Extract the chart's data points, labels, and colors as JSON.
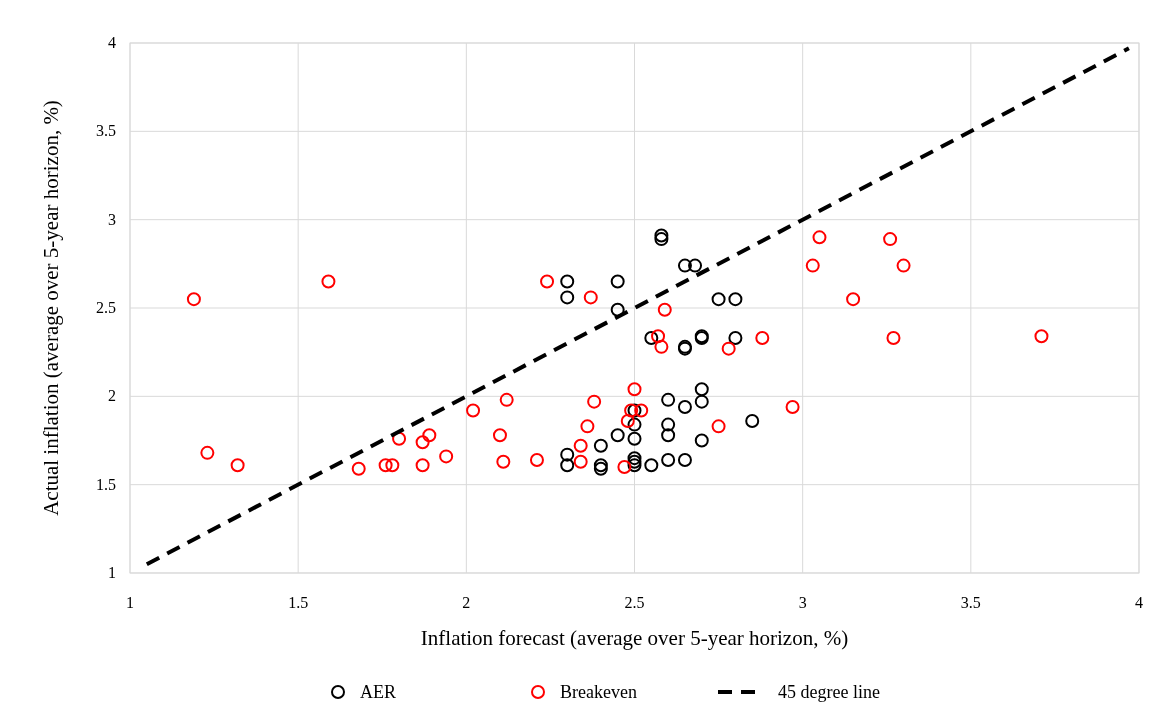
{
  "chart_data": {
    "type": "scatter",
    "xlabel": "Inflation forecast (average over 5-year horizon, %)",
    "ylabel": "Actual inflation (average over 5-year horizon, %)",
    "xlim": [
      1,
      4
    ],
    "ylim": [
      1,
      4
    ],
    "xticks": [
      1,
      1.5,
      2,
      2.5,
      3,
      3.5,
      4
    ],
    "yticks": [
      1,
      1.5,
      2,
      2.5,
      3,
      3.5,
      4
    ],
    "grid": true,
    "legend": "bottom",
    "marker": "circle",
    "series": [
      {
        "name": "AER",
        "color": "#000000",
        "x": [
          2.3,
          2.3,
          2.45,
          2.45,
          2.58,
          2.58,
          2.65,
          2.68,
          2.75,
          2.8,
          2.55,
          2.7,
          2.7,
          2.65,
          2.65,
          2.8,
          2.7,
          2.7,
          2.6,
          2.65,
          2.6,
          2.6,
          2.85,
          2.5,
          2.5,
          2.5,
          2.45,
          2.4,
          2.3,
          2.3,
          2.4,
          2.4,
          2.5,
          2.5,
          2.5,
          2.55,
          2.6,
          2.65,
          2.7
        ],
        "values": [
          2.65,
          2.56,
          2.65,
          2.49,
          2.89,
          2.91,
          2.74,
          2.74,
          2.55,
          2.55,
          2.33,
          2.33,
          2.34,
          2.28,
          2.27,
          2.33,
          2.04,
          1.97,
          1.98,
          1.94,
          1.84,
          1.78,
          1.86,
          1.92,
          1.84,
          1.76,
          1.78,
          1.72,
          1.67,
          1.61,
          1.61,
          1.59,
          1.65,
          1.63,
          1.61,
          1.61,
          1.64,
          1.64,
          1.75
        ]
      },
      {
        "name": "Breakeven",
        "color": "#ff0000",
        "x": [
          1.19,
          1.59,
          1.23,
          1.32,
          1.68,
          1.76,
          1.78,
          1.8,
          1.87,
          1.87,
          1.89,
          1.94,
          2.02,
          2.1,
          2.11,
          2.12,
          2.21,
          2.24,
          2.37,
          2.34,
          2.34,
          2.36,
          2.38,
          2.47,
          2.48,
          2.49,
          2.52,
          2.5,
          2.57,
          2.59,
          2.58,
          2.75,
          2.78,
          2.88,
          2.97,
          3.03,
          3.05,
          3.15,
          3.26,
          3.27,
          3.3,
          3.71
        ],
        "values": [
          2.55,
          2.65,
          1.68,
          1.61,
          1.59,
          1.61,
          1.61,
          1.76,
          1.61,
          1.74,
          1.78,
          1.66,
          1.92,
          1.78,
          1.63,
          1.98,
          1.64,
          2.65,
          2.56,
          1.63,
          1.72,
          1.83,
          1.97,
          1.6,
          1.86,
          1.92,
          1.92,
          2.04,
          2.34,
          2.49,
          2.28,
          1.83,
          2.27,
          2.33,
          1.94,
          2.74,
          2.9,
          2.55,
          2.89,
          2.33,
          2.74,
          2.34
        ]
      },
      {
        "name": "45 degree line",
        "type": "line",
        "line_style": "dashed",
        "marker": "none",
        "color": "#000000",
        "x": [
          1.05,
          3.97
        ],
        "values": [
          1.05,
          3.97
        ]
      }
    ]
  }
}
